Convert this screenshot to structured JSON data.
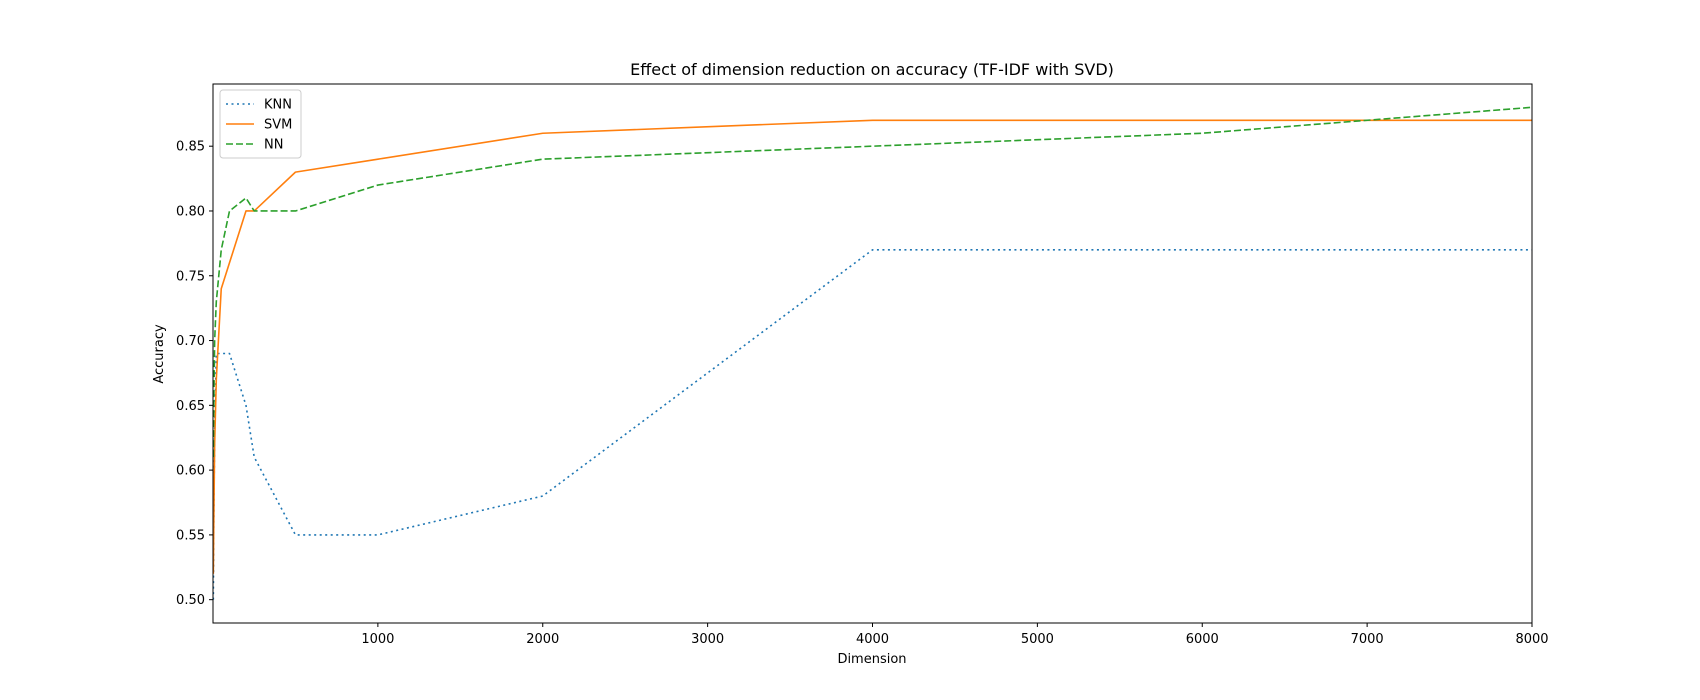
{
  "chart_data": {
    "type": "line",
    "title": "Effect of dimension reduction on accuracy (TF-IDF with SVD)",
    "xlabel": "Dimension",
    "ylabel": "Accuracy",
    "xlim": [
      0,
      8000
    ],
    "ylim": [
      0.482,
      0.898
    ],
    "xticks": [
      1000,
      2000,
      3000,
      4000,
      5000,
      6000,
      7000,
      8000
    ],
    "yticks": [
      0.5,
      0.55,
      0.6,
      0.65,
      0.7,
      0.75,
      0.8,
      0.85
    ],
    "grid": false,
    "legend_position": "top-left",
    "series": [
      {
        "name": "KNN",
        "color": "#1f77b4",
        "style": "dotted",
        "x": [
          2,
          5,
          10,
          20,
          50,
          100,
          200,
          250,
          500,
          1000,
          2000,
          4000,
          6000,
          8000
        ],
        "y": [
          0.5,
          0.56,
          0.63,
          0.69,
          0.69,
          0.69,
          0.65,
          0.61,
          0.55,
          0.55,
          0.58,
          0.77,
          0.77,
          0.77
        ]
      },
      {
        "name": "SVM",
        "color": "#ff7f0e",
        "style": "solid",
        "x": [
          2,
          5,
          10,
          20,
          50,
          100,
          200,
          250,
          500,
          1000,
          2000,
          4000,
          6000,
          8000
        ],
        "y": [
          0.52,
          0.56,
          0.62,
          0.67,
          0.74,
          0.76,
          0.8,
          0.8,
          0.83,
          0.84,
          0.86,
          0.87,
          0.87,
          0.87
        ]
      },
      {
        "name": "NN",
        "color": "#2ca02c",
        "style": "dashed",
        "x": [
          2,
          5,
          10,
          20,
          50,
          100,
          200,
          250,
          500,
          1000,
          2000,
          4000,
          6000,
          8000
        ],
        "y": [
          0.61,
          0.65,
          0.7,
          0.73,
          0.77,
          0.8,
          0.81,
          0.8,
          0.8,
          0.82,
          0.84,
          0.85,
          0.86,
          0.88
        ]
      }
    ]
  }
}
